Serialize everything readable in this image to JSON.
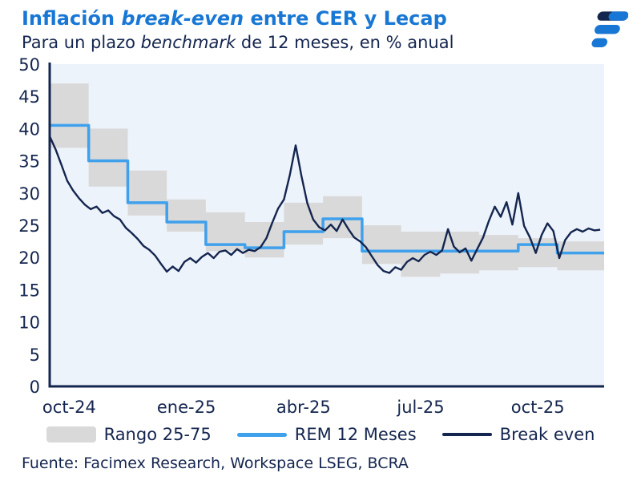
{
  "header": {
    "title_part1": "Inflación ",
    "title_italic": "break-even",
    "title_part2": " entre CER y Lecap",
    "subtitle_part1": "Para un plazo ",
    "subtitle_italic": "benchmark",
    "subtitle_part2": " de 12 meses, en % anual"
  },
  "legend": {
    "band_label": "Rango 25-75",
    "rem_label": "REM 12 Meses",
    "breakeven_label": "Break even"
  },
  "footer": {
    "source": "Fuente: Facimex Research, Workspace LSEG, BCRA"
  },
  "colors": {
    "title_blue": "#1877D4",
    "navy": "#14254F",
    "light_blue": "#3FA0EC",
    "band_gray": "#D9D9D9",
    "plot_bg": "#EDF3FA"
  },
  "chart_data": {
    "type": "line",
    "title": "Inflación break-even entre CER y Lecap",
    "subtitle": "Para un plazo benchmark de 12 meses, en % anual",
    "xlabel": "",
    "ylabel": "% anual",
    "ylim": [
      0,
      50
    ],
    "yticks": [
      0,
      5,
      10,
      15,
      20,
      25,
      30,
      35,
      40,
      45,
      50
    ],
    "grid": false,
    "legend_position": "bottom",
    "x_total_months": 14.2,
    "x_tick_labels": [
      "oct-24",
      "ene-25",
      "abr-25",
      "jul-25",
      "oct-25"
    ],
    "x_tick_month_index": [
      0,
      3,
      6,
      9,
      12
    ],
    "months": [
      "oct-24",
      "nov-24",
      "dic-24",
      "ene-25",
      "feb-25",
      "mar-25",
      "abr-25",
      "may-25",
      "jun-25",
      "jul-25",
      "ago-25",
      "sep-25",
      "oct-25",
      "nov-25"
    ],
    "series": [
      {
        "name": "Rango 25-75",
        "type": "band",
        "low": [
          37,
          31,
          26.5,
          24,
          21,
          20,
          22,
          23,
          19,
          17,
          17.5,
          18,
          18.5,
          18
        ],
        "high": [
          47,
          40,
          33.5,
          29,
          27,
          25.5,
          28.5,
          29.5,
          25,
          24,
          24,
          23.5,
          23,
          22.5
        ]
      },
      {
        "name": "REM 12 Meses",
        "type": "step",
        "values": [
          40.5,
          35,
          28.5,
          25.5,
          22,
          21.5,
          24,
          26,
          21,
          21,
          21,
          21,
          22,
          20.7
        ]
      },
      {
        "name": "Break even",
        "type": "line",
        "x_start": 0,
        "x_step": 0.15,
        "values": [
          38.8,
          36.8,
          34.4,
          31.9,
          30.4,
          29.2,
          28.2,
          27.5,
          27.9,
          26.9,
          27.3,
          26.4,
          25.9,
          24.6,
          23.8,
          22.9,
          21.8,
          21.2,
          20.3,
          19.0,
          17.8,
          18.6,
          17.9,
          19.3,
          19.9,
          19.2,
          20.1,
          20.7,
          19.9,
          20.9,
          21.1,
          20.4,
          21.3,
          20.7,
          21.2,
          21.0,
          21.6,
          23.0,
          25.4,
          27.6,
          29.0,
          32.8,
          37.4,
          32.6,
          28.4,
          25.9,
          24.7,
          24.2,
          25.1,
          24.1,
          25.9,
          24.4,
          23.1,
          22.5,
          21.6,
          20.2,
          18.8,
          17.9,
          17.6,
          18.5,
          18.1,
          19.3,
          19.9,
          19.4,
          20.4,
          20.9,
          20.4,
          21.1,
          24.4,
          21.7,
          20.8,
          21.4,
          19.5,
          21.3,
          23.1,
          25.7,
          27.9,
          26.3,
          28.6,
          25.1,
          30.0,
          24.9,
          23.1,
          20.7,
          23.5,
          25.3,
          24.1,
          19.9,
          22.7,
          23.9,
          24.4,
          24.0,
          24.5,
          24.2,
          24.3
        ]
      }
    ]
  }
}
